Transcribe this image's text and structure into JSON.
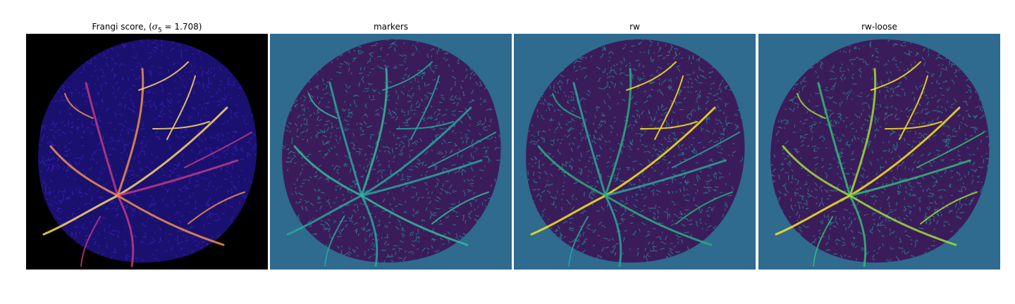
{
  "figure": {
    "panels": [
      {
        "id": "frangi",
        "title_prefix": "Frangi score, (",
        "title_symbol": "σ",
        "title_subscript": "5",
        "title_suffix": " = 1.708)",
        "background": "#000000",
        "blob": "#1a1070",
        "texture": "#3b1fb0",
        "vessel_colors": [
          "#c03a85",
          "#f2904a",
          "#ffd76a"
        ]
      },
      {
        "id": "markers",
        "title": "markers",
        "background": "#2f6a8f",
        "blob": "#3b1c5a",
        "texture": "#2a7f8f",
        "vessel_colors": [
          "#2aa59b",
          "#35b79a",
          "#2aa59b"
        ]
      },
      {
        "id": "rw",
        "title": "rw",
        "background": "#2f6a8f",
        "blob": "#3b1c5a",
        "texture": "#2a7f8f",
        "vessel_colors": [
          "#2aa59b",
          "#27ad81",
          "#f6e620"
        ]
      },
      {
        "id": "rw-loose",
        "title": "rw-loose",
        "background": "#2f6a8f",
        "blob": "#3b1c5a",
        "texture": "#2a7f8f",
        "vessel_colors": [
          "#35b779",
          "#a0da39",
          "#f6e620"
        ]
      }
    ]
  }
}
